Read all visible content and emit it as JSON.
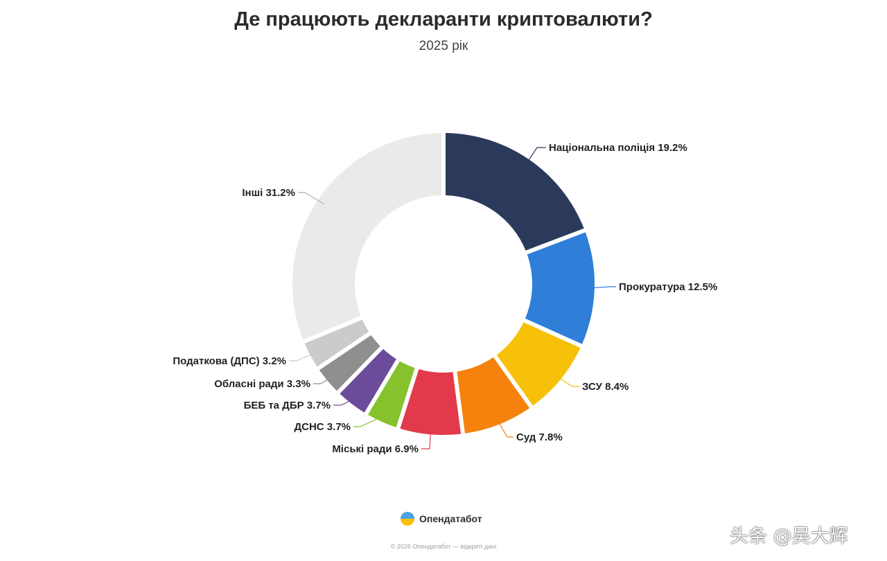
{
  "header": {
    "title": "Де працюють декларанти криптовалюти?",
    "subtitle": "2025 рік"
  },
  "chart_data": {
    "type": "pie",
    "donut": true,
    "start_direction": "top",
    "direction": "clockwise",
    "slices": [
      {
        "label": "Національна поліція",
        "value": 19.2,
        "display": "Національна поліція 19.2%",
        "color": "#2b3a5a"
      },
      {
        "label": "Прокуратура",
        "value": 12.5,
        "display": "Прокуратура 12.5%",
        "color": "#2f7fd9"
      },
      {
        "label": "ЗСУ",
        "value": 8.4,
        "display": "ЗСУ 8.4%",
        "color": "#f7c10a"
      },
      {
        "label": "Суд",
        "value": 7.8,
        "display": "Суд 7.8%",
        "color": "#f5820c"
      },
      {
        "label": "Міські ради",
        "value": 6.9,
        "display": "Міські ради 6.9%",
        "color": "#e23a4a"
      },
      {
        "label": "ДСНС",
        "value": 3.7,
        "display": "ДСНС 3.7%",
        "color": "#86c22e"
      },
      {
        "label": "БЕБ та ДБР",
        "value": 3.7,
        "display": "БЕБ та ДБР 3.7%",
        "color": "#6b4c9a"
      },
      {
        "label": "Обласні ради",
        "value": 3.3,
        "display": "Обласні ради 3.3%",
        "color": "#8f8f8f"
      },
      {
        "label": "Податкова (ДПС)",
        "value": 3.2,
        "display": "Податкова (ДПС) 3.2%",
        "color": "#cbcbcb"
      },
      {
        "label": "Інші",
        "value": 31.2,
        "display": "Інші 31.2%",
        "color": "#eaeaea"
      }
    ]
  },
  "branding": {
    "logo_text": "Опендатабот",
    "footer": "© 2026 Опендатабот — відкриті дані"
  },
  "watermark": "头条 @吴大辉"
}
